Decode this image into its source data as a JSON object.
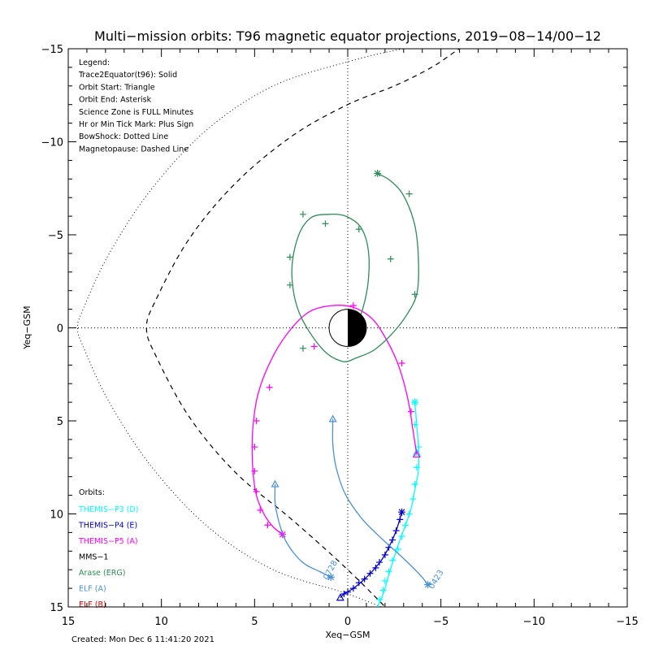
{
  "chart_data": {
    "type": "line",
    "title": "Multi−mission orbits: T96 magnetic equator projections, 2019−08−14/00−12",
    "xlabel": "Xeq−GSM",
    "ylabel": "Yeq−GSM",
    "xlim": [
      15,
      -15
    ],
    "ylim": [
      15,
      -15
    ],
    "x_ticks": [
      "15",
      "10",
      "5",
      "0",
      "−5",
      "−10",
      "−15"
    ],
    "y_ticks": [
      "−15",
      "−10",
      "−5",
      "0",
      "5",
      "10",
      "15"
    ],
    "grid": false,
    "legend_lines": [
      "Legend:",
      "Trace2Equator(t96): Solid",
      "Orbit Start: Triangle",
      "Orbit End: Asterisk",
      "Science Zone is FULL Minutes",
      "Hr or Min Tick Mark: Plus Sign",
      "BowShock: Dotted Line",
      "Magnetopause: Dashed Line"
    ],
    "orbits_title": "Orbits:",
    "created": "Created: Mon Dec  6 11:41:20 2021",
    "series": [
      {
        "name": "THEMIS−P3 (D)",
        "color": "#00ffff",
        "style": "solid",
        "x": [
          -3.6,
          -3.7,
          -3.8,
          -3.8,
          -3.6,
          -3.4,
          -3.1,
          -2.8,
          -2.5,
          -2.2,
          -1.9,
          -1.6
        ],
        "y": [
          4.0,
          5.2,
          6.5,
          7.6,
          8.7,
          9.7,
          10.6,
          11.4,
          12.3,
          13.3,
          14.3,
          15.0
        ],
        "ticks": [
          [
            -3.6,
            5.2
          ],
          [
            -3.8,
            6.4
          ],
          [
            -3.7,
            7.5
          ],
          [
            -3.6,
            8.4
          ],
          [
            -3.5,
            9.2
          ],
          [
            -3.3,
            10.0
          ],
          [
            -3.1,
            10.6
          ],
          [
            -2.9,
            11.2
          ],
          [
            -2.7,
            11.9
          ],
          [
            -2.4,
            12.5
          ],
          [
            -2.2,
            13.1
          ],
          [
            -2.0,
            13.6
          ],
          [
            -1.9,
            14.1
          ],
          [
            -1.7,
            14.6
          ]
        ],
        "start": [
          -3.7,
          6.7
        ],
        "end": [
          -3.6,
          4.0
        ]
      },
      {
        "name": "THEMIS−P4 (E)",
        "color": "#0000cd",
        "style": "solid",
        "x": [
          -2.9,
          -2.6,
          -2.2,
          -1.8,
          -1.3,
          -0.8,
          -0.3,
          0.2,
          0.4
        ],
        "y": [
          9.9,
          10.9,
          11.8,
          12.5,
          13.1,
          13.6,
          14.0,
          14.3,
          14.5
        ],
        "ticks": [
          [
            -2.8,
            10.3
          ],
          [
            -2.6,
            10.9
          ],
          [
            -2.4,
            11.4
          ],
          [
            -2.2,
            11.8
          ],
          [
            -2.0,
            12.2
          ],
          [
            -1.7,
            12.6
          ],
          [
            -1.5,
            12.9
          ],
          [
            -1.2,
            13.2
          ],
          [
            -0.9,
            13.5
          ],
          [
            -0.6,
            13.7
          ],
          [
            -0.3,
            14.0
          ],
          [
            0.0,
            14.2
          ],
          [
            0.2,
            14.3
          ]
        ],
        "start": [
          0.4,
          14.5
        ],
        "end": [
          -2.9,
          9.9
        ]
      },
      {
        "name": "THEMIS−P5 (A)",
        "color": "#ff00ff",
        "style": "solid",
        "x": [
          -3.7,
          -3.5,
          -3.3,
          -3.0,
          -2.6,
          -2.0,
          -1.3,
          -0.3,
          0.8,
          2.0,
          3.0,
          4.0,
          4.8,
          5.1,
          5.1,
          4.9,
          4.5,
          4.0,
          3.5
        ],
        "y": [
          6.8,
          5.5,
          4.2,
          2.9,
          1.7,
          0.5,
          -0.5,
          -1.1,
          -1.2,
          -0.9,
          0.0,
          1.5,
          3.5,
          5.5,
          7.5,
          9.0,
          10.0,
          10.7,
          11.1
        ],
        "ticks": [
          [
            -3.4,
            4.5
          ],
          [
            -2.9,
            1.9
          ],
          [
            1.8,
            1.0
          ],
          [
            4.2,
            3.2
          ],
          [
            4.9,
            5.0
          ],
          [
            5.0,
            6.4
          ],
          [
            5.0,
            7.7
          ],
          [
            4.9,
            8.8
          ],
          [
            4.7,
            9.8
          ],
          [
            4.3,
            10.6
          ],
          [
            -0.3,
            -1.2
          ]
        ],
        "start": [
          -3.7,
          6.8
        ],
        "end": [
          3.5,
          11.1
        ]
      },
      {
        "name": "MMS−1",
        "color": "#000000",
        "style": "solid",
        "x": [],
        "y": [],
        "ticks": [],
        "start": null,
        "end": null
      },
      {
        "name": "Arase (ERG)",
        "color": "#2e8b57",
        "style": "solid",
        "x": [
          -1.6,
          -2.3,
          -3.0,
          -3.6,
          -3.8,
          -3.7,
          -3.1,
          -2.3,
          -1.4,
          -0.5,
          0.3,
          1.4,
          2.6,
          3.0,
          2.7,
          2.0,
          1.0,
          0.1,
          -0.7,
          -1.1,
          -1.1,
          -0.8,
          -0.4,
          0.1
        ],
        "y": [
          -8.3,
          -7.9,
          -7.1,
          -5.5,
          -3.5,
          -1.8,
          -0.6,
          0.4,
          1.2,
          1.6,
          1.8,
          1.1,
          -0.8,
          -2.9,
          -4.8,
          -5.9,
          -6.1,
          -6.0,
          -5.4,
          -4.2,
          -2.5,
          -1.0,
          0.0,
          0.7
        ],
        "ticks": [
          [
            -3.3,
            -7.2
          ],
          [
            -3.6,
            -1.8
          ],
          [
            -2.3,
            -3.7
          ],
          [
            -0.6,
            -5.3
          ],
          [
            1.2,
            -5.6
          ],
          [
            2.4,
            -6.1
          ],
          [
            3.1,
            -3.8
          ],
          [
            3.1,
            -2.3
          ],
          [
            2.4,
            1.1
          ]
        ],
        "start": null,
        "end": [
          -1.6,
          -8.3
        ]
      },
      {
        "name": "ELF (A)",
        "color": "#4a90d9",
        "style": "solid",
        "x": [
          0.8,
          0.8,
          0.6,
          0.1,
          -0.8,
          -1.9,
          -3.0,
          -3.9,
          -4.3
        ],
        "y": [
          4.9,
          6.3,
          7.6,
          9.0,
          10.3,
          11.4,
          12.4,
          13.3,
          13.8
        ],
        "ticks": [],
        "start": [
          0.8,
          4.9
        ],
        "end": [
          -4.3,
          13.8
        ],
        "label": "0423"
      },
      {
        "name": "ELF (A) 2",
        "color": "#4a90d9",
        "style": "solid",
        "x": [
          3.9,
          3.9,
          3.7,
          3.4,
          2.9,
          2.3,
          1.5,
          0.9
        ],
        "y": [
          8.4,
          9.4,
          10.4,
          11.3,
          12.1,
          12.7,
          13.1,
          13.4
        ],
        "ticks": [],
        "start": [
          3.9,
          8.4
        ],
        "end": [
          0.9,
          13.4
        ],
        "label": "0728"
      },
      {
        "name": "ELF (B)",
        "color": "#dc0000",
        "style": "solid",
        "x": [],
        "y": [],
        "ticks": [],
        "start": null,
        "end": null
      }
    ],
    "magnetopause": {
      "x": [
        -7.0,
        -6.0,
        -4.5,
        -2.5,
        0.0,
        3.0,
        6.0,
        8.5,
        10.3,
        10.8,
        10.3,
        8.5,
        6.0,
        3.0,
        0.0,
        -2.5
      ],
      "y": [
        -15.5,
        -15.0,
        -14.0,
        -13.0,
        -12.0,
        -10.3,
        -7.8,
        -4.8,
        -1.5,
        0.0,
        1.5,
        4.8,
        7.8,
        10.3,
        13.0,
        15.5
      ],
      "style": "dashed",
      "color": "#000000"
    },
    "bowshock": {
      "x": [
        -8.0,
        -6.0,
        -3.0,
        0.0,
        4.0,
        7.5,
        10.5,
        12.8,
        14.2,
        14.5,
        14.2,
        12.8,
        10.5,
        7.5,
        4.0,
        0.0,
        -3.0
      ],
      "y": [
        -15.5,
        -15.4,
        -15.0,
        -14.3,
        -13.0,
        -10.7,
        -7.5,
        -4.0,
        -1.0,
        0.0,
        1.0,
        4.0,
        7.5,
        10.7,
        13.0,
        14.3,
        15.5
      ],
      "style": "dotted",
      "color": "#000000"
    }
  }
}
